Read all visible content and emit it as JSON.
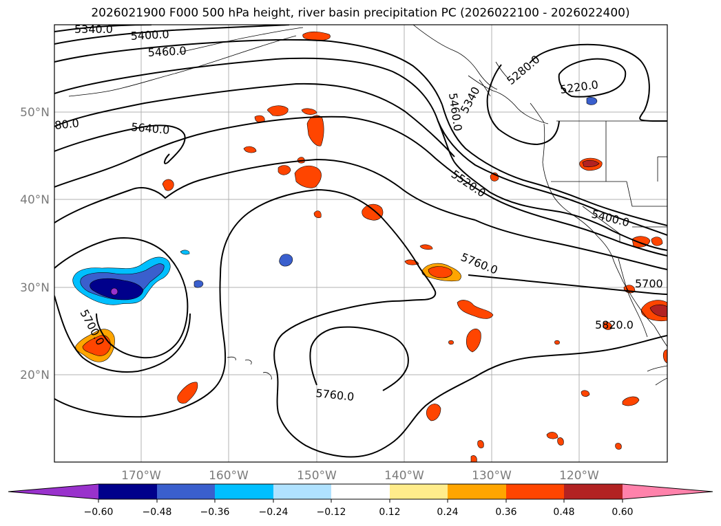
{
  "title": "2026021900 F000 500 hPa height, river basin precipitation PC (2026022100 - 2026022400)",
  "map": {
    "lat_ticks": [
      "50°N",
      "40°N",
      "30°N",
      "20°N"
    ],
    "lon_ticks": [
      "170°W",
      "160°W",
      "150°W",
      "140°W",
      "130°W",
      "120°W"
    ],
    "gridlines": true
  },
  "contour_labels": [
    "5340.0",
    "5400.0",
    "5460.0",
    "80.0",
    "5640.0",
    "5460.0",
    "5340",
    "5280.0",
    "5220.0",
    "5520.0",
    "5400.0",
    "5760.0",
    "5700",
    "5820.0",
    "5700.0",
    "5760.0"
  ],
  "colorbar": {
    "ticks": [
      "−0.60",
      "−0.48",
      "−0.36",
      "−0.24",
      "−0.12",
      "0.12",
      "0.24",
      "0.36",
      "0.48",
      "0.60"
    ],
    "colors": [
      "#9932CC",
      "#00008B",
      "#3A5FCD",
      "#00BFFF",
      "#B0E2FF",
      "#FFFFFF",
      "#FFEC8B",
      "#FFA500",
      "#FF4500",
      "#B22222",
      "#FF82AB"
    ]
  }
}
